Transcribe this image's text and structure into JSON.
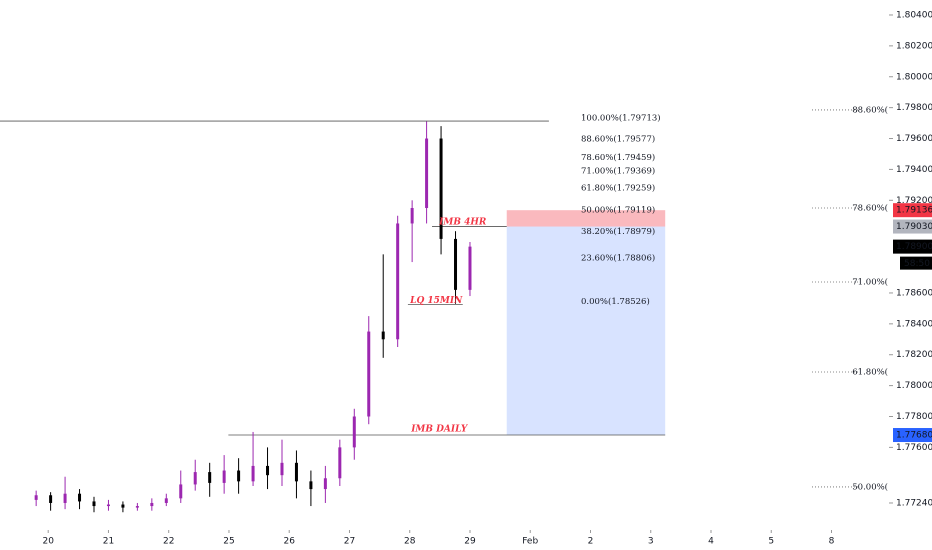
{
  "chart_data": {
    "type": "candlestick",
    "xlim": [
      -0.8,
      13.39
    ],
    "ylim": [
      1.77065,
      1.80497
    ],
    "xticks": [
      {
        "value": 0,
        "label": "20"
      },
      {
        "value": 1,
        "label": "21"
      },
      {
        "value": 2,
        "label": "22"
      },
      {
        "value": 3,
        "label": "25"
      },
      {
        "value": 4,
        "label": "26"
      },
      {
        "value": 5,
        "label": "27"
      },
      {
        "value": 6,
        "label": "28"
      },
      {
        "value": 7,
        "label": "29"
      },
      {
        "value": 8,
        "label": "Feb"
      },
      {
        "value": 9,
        "label": "2"
      },
      {
        "value": 10,
        "label": "3"
      },
      {
        "value": 11,
        "label": "4"
      },
      {
        "value": 12,
        "label": "5"
      },
      {
        "value": 13,
        "label": "8"
      }
    ],
    "yticks": [
      {
        "value": 1.804,
        "label": "1.80400"
      },
      {
        "value": 1.802,
        "label": "1.80200"
      },
      {
        "value": 1.8,
        "label": "1.80000"
      },
      {
        "value": 1.798,
        "label": "1.79800"
      },
      {
        "value": 1.796,
        "label": "1.79600"
      },
      {
        "value": 1.794,
        "label": "1.79400"
      },
      {
        "value": 1.792,
        "label": "1.79200"
      },
      {
        "value": 1.786,
        "label": "1.78600"
      },
      {
        "value": 1.784,
        "label": "1.78400"
      },
      {
        "value": 1.782,
        "label": "1.78200"
      },
      {
        "value": 1.78,
        "label": "1.78000"
      },
      {
        "value": 1.778,
        "label": "1.77800"
      },
      {
        "value": 1.776,
        "label": "1.77600"
      },
      {
        "value": 1.7724,
        "label": "1.77240"
      }
    ],
    "up_color": "#9c27b0",
    "down_color": "#000000",
    "x": [
      -0.2,
      0.04,
      0.28,
      0.52,
      0.76,
      1.0,
      1.24,
      1.48,
      1.72,
      1.96,
      2.2,
      2.44,
      2.68,
      2.92,
      3.16,
      3.4,
      3.64,
      3.88,
      4.12,
      4.36,
      4.6,
      4.84,
      5.08,
      5.32,
      5.56,
      5.8,
      6.04,
      6.28,
      6.52,
      6.76,
      7.0
    ],
    "open": [
      1.7726,
      1.7729,
      1.7724,
      1.773,
      1.7725,
      1.7722,
      1.7723,
      1.7721,
      1.7722,
      1.7724,
      1.7727,
      1.7736,
      1.7744,
      1.7737,
      1.7745,
      1.7738,
      1.7748,
      1.7742,
      1.775,
      1.7738,
      1.7733,
      1.774,
      1.776,
      1.778,
      1.7835,
      1.783,
      1.7905,
      1.7915,
      1.796,
      1.7895,
      1.7862
    ],
    "high": [
      1.7732,
      1.7731,
      1.7741,
      1.7733,
      1.7728,
      1.7726,
      1.7725,
      1.7724,
      1.7727,
      1.773,
      1.7745,
      1.7752,
      1.775,
      1.7755,
      1.7753,
      1.777,
      1.776,
      1.7765,
      1.7758,
      1.7745,
      1.7748,
      1.7765,
      1.7785,
      1.7845,
      1.7885,
      1.791,
      1.792,
      1.7971,
      1.7968,
      1.79,
      1.7893
    ],
    "low": [
      1.7722,
      1.7719,
      1.772,
      1.772,
      1.7718,
      1.7719,
      1.7718,
      1.7719,
      1.7719,
      1.7722,
      1.7724,
      1.7732,
      1.7728,
      1.773,
      1.773,
      1.7735,
      1.7733,
      1.7735,
      1.7727,
      1.7722,
      1.7724,
      1.7735,
      1.7752,
      1.7775,
      1.7818,
      1.7825,
      1.788,
      1.7905,
      1.7885,
      1.7853,
      1.7858
    ],
    "close": [
      1.7729,
      1.7724,
      1.773,
      1.7725,
      1.7722,
      1.7723,
      1.7721,
      1.7722,
      1.7724,
      1.7727,
      1.7736,
      1.7744,
      1.7737,
      1.7745,
      1.7738,
      1.7748,
      1.7742,
      1.775,
      1.7738,
      1.7733,
      1.774,
      1.776,
      1.778,
      1.7835,
      1.783,
      1.7905,
      1.7915,
      1.796,
      1.7895,
      1.7862,
      1.789
    ],
    "levels": [
      {
        "value": 1.79713,
        "x": [
          -0.8,
          8.31
        ]
      },
      {
        "value": 1.7768,
        "x": [
          2.99,
          10.24
        ]
      },
      {
        "value": 1.7903,
        "x": [
          6.37,
          7.61
        ]
      },
      {
        "value": 1.78526,
        "x": [
          5.97,
          6.88
        ]
      }
    ],
    "position": {
      "entry": 1.7903,
      "stop": 1.79136,
      "target": 1.7768,
      "x": [
        7.61,
        10.24
      ]
    },
    "fib_labels": [
      {
        "value": 1.79713,
        "label": "100.00%(1.79713)"
      },
      {
        "value": 1.79577,
        "label": "88.60%(1.79577)"
      },
      {
        "value": 1.79459,
        "label": "78.60%(1.79459)"
      },
      {
        "value": 1.79369,
        "label": "71.00%(1.79369)"
      },
      {
        "value": 1.79259,
        "label": "61.80%(1.79259)"
      },
      {
        "value": 1.79119,
        "label": "50.00%(1.79119)"
      },
      {
        "value": 1.78979,
        "label": "38.20%(1.78979)"
      },
      {
        "value": 1.78806,
        "label": "23.60%(1.78806)"
      },
      {
        "value": 1.78526,
        "label": "0.00%(1.78526)"
      }
    ],
    "fib_right": [
      {
        "value": 1.79785,
        "label": "88.60%("
      },
      {
        "value": 1.7915,
        "label": "78.60%("
      },
      {
        "value": 1.78671,
        "label": "71.00%("
      },
      {
        "value": 1.78088,
        "label": "61.80%("
      },
      {
        "value": 1.77344,
        "label": "50.00%("
      }
    ],
    "annotations": [
      {
        "text": "IMB 4HR",
        "x": 6.88,
        "value": 1.7906
      },
      {
        "text": "LQ 15MIN",
        "x": 6.44,
        "value": 1.7855
      },
      {
        "text": "IMB DAILY",
        "x": 6.49,
        "value": 1.7772
      }
    ],
    "price_tags": [
      {
        "value": 1.79136,
        "label": "1.79136",
        "color": "#f23645"
      },
      {
        "value": 1.7903,
        "label": "1.79030",
        "color": "#b2b5be"
      },
      {
        "value": 1.789,
        "label": "1.78900",
        "color": "#000000"
      },
      {
        "value": 1.7768,
        "label": "1.77680",
        "color": "#2962ff"
      }
    ],
    "timer": "58:50"
  }
}
